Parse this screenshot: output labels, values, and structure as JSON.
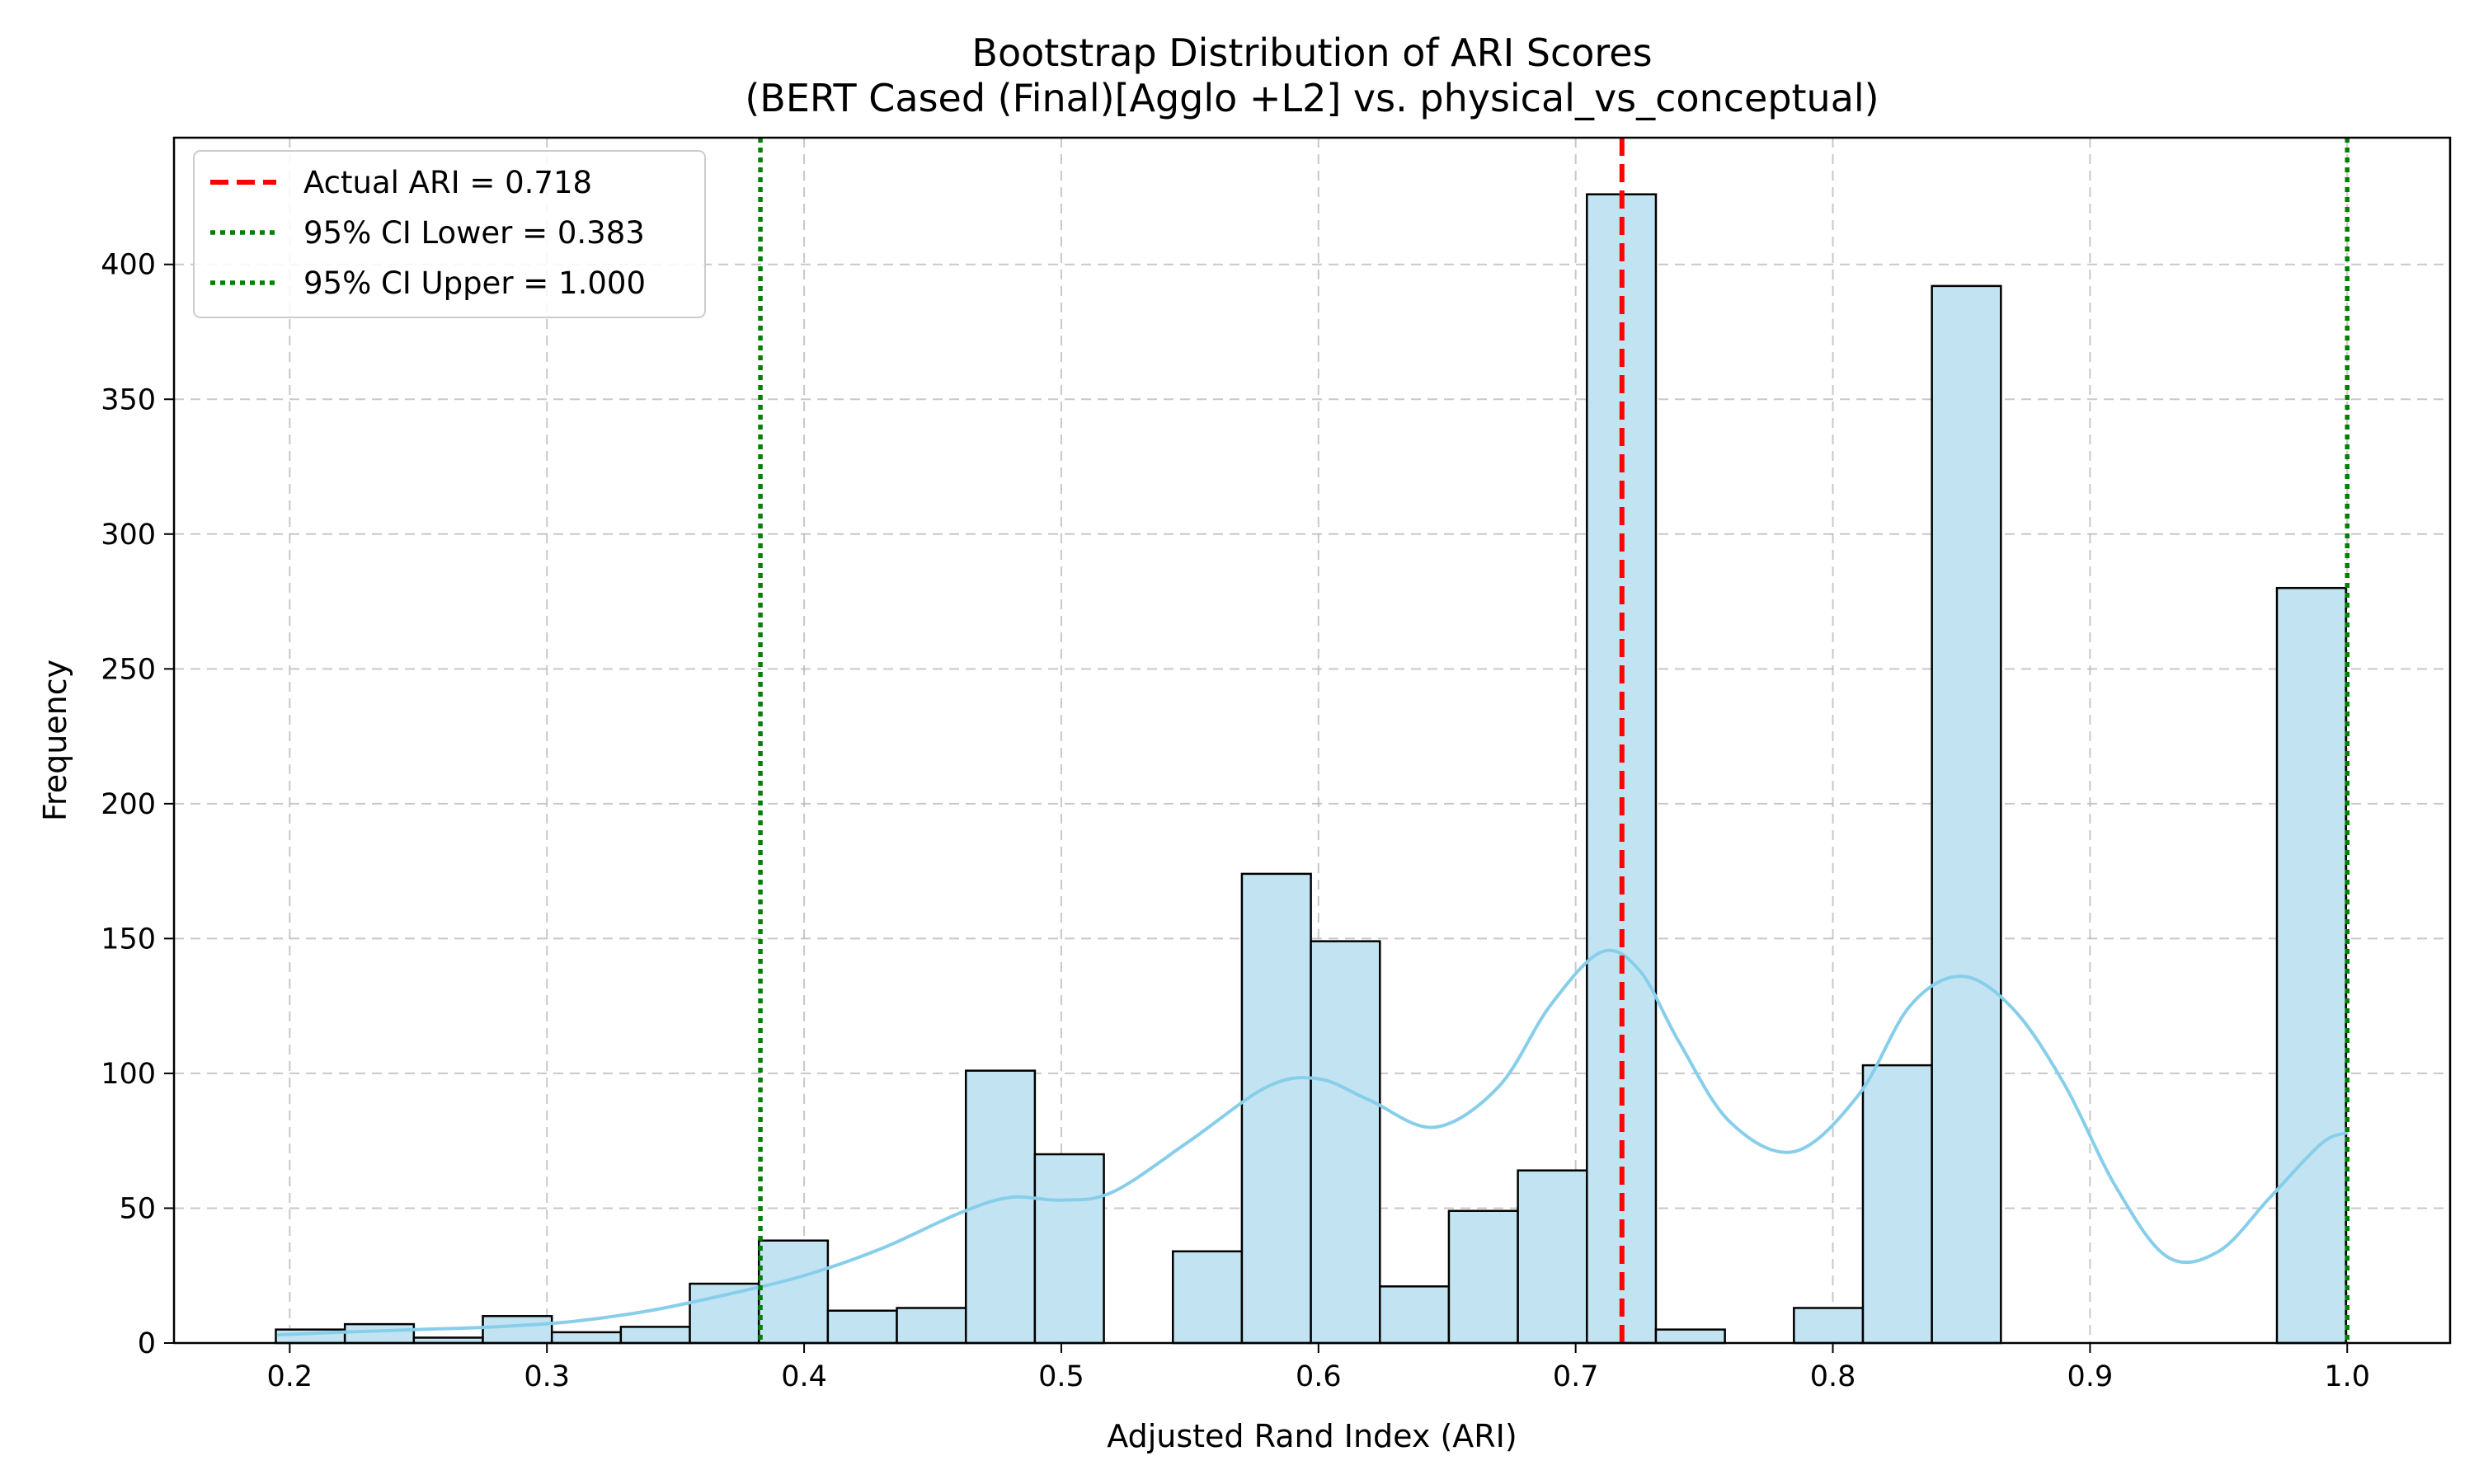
{
  "chart_data": {
    "type": "bar",
    "title": "Bootstrap Distribution of ARI Scores",
    "subtitle": "(BERT Cased (Final)[Agglo +L2] vs. physical_vs_conceptual)",
    "xlabel": "Adjusted Rand Index (ARI)",
    "ylabel": "Frequency",
    "xlim": [
      0.155,
      1.04
    ],
    "ylim": [
      0,
      447
    ],
    "x_ticks": [
      "0.2",
      "0.3",
      "0.4",
      "0.5",
      "0.6",
      "0.7",
      "0.8",
      "0.9",
      "1.0"
    ],
    "y_ticks": [
      "0",
      "50",
      "100",
      "150",
      "200",
      "250",
      "300",
      "350",
      "400"
    ],
    "grid": true,
    "bin_start": 0.1946,
    "bin_width": 0.02683,
    "counts": [
      5,
      7,
      2,
      10,
      4,
      6,
      22,
      38,
      12,
      13,
      101,
      70,
      0,
      34,
      174,
      149,
      21,
      49,
      64,
      426,
      5,
      0,
      13,
      103,
      392,
      0,
      0,
      0,
      0,
      280
    ],
    "kde": {
      "x": [
        0.195,
        0.22,
        0.25,
        0.28,
        0.31,
        0.34,
        0.37,
        0.4,
        0.43,
        0.46,
        0.48,
        0.5,
        0.52,
        0.55,
        0.58,
        0.6,
        0.62,
        0.645,
        0.67,
        0.69,
        0.71,
        0.725,
        0.74,
        0.76,
        0.785,
        0.81,
        0.83,
        0.85,
        0.87,
        0.89,
        0.91,
        0.93,
        0.95,
        0.97,
        0.99,
        1.0
      ],
      "y": [
        3,
        4,
        5,
        6,
        8,
        12,
        18,
        25,
        35,
        48,
        54,
        53,
        56,
        75,
        95,
        98,
        90,
        80,
        95,
        125,
        145,
        138,
        112,
        82,
        71,
        92,
        125,
        136,
        124,
        96,
        58,
        32,
        34,
        54,
        74,
        78
      ]
    },
    "bar_color": "#c2e4f2",
    "kde_color": "#87ceeb",
    "lines": [
      {
        "label": "Actual ARI = 0.718",
        "x": 0.718,
        "color": "#ff0000",
        "style": "dashed"
      },
      {
        "label": "95% CI Lower = 0.383",
        "x": 0.383,
        "color": "#008000",
        "style": "dotted"
      },
      {
        "label": "95% CI Upper = 1.000",
        "x": 1.0,
        "color": "#008000",
        "style": "dotted"
      }
    ],
    "legend_position": "top-left"
  }
}
